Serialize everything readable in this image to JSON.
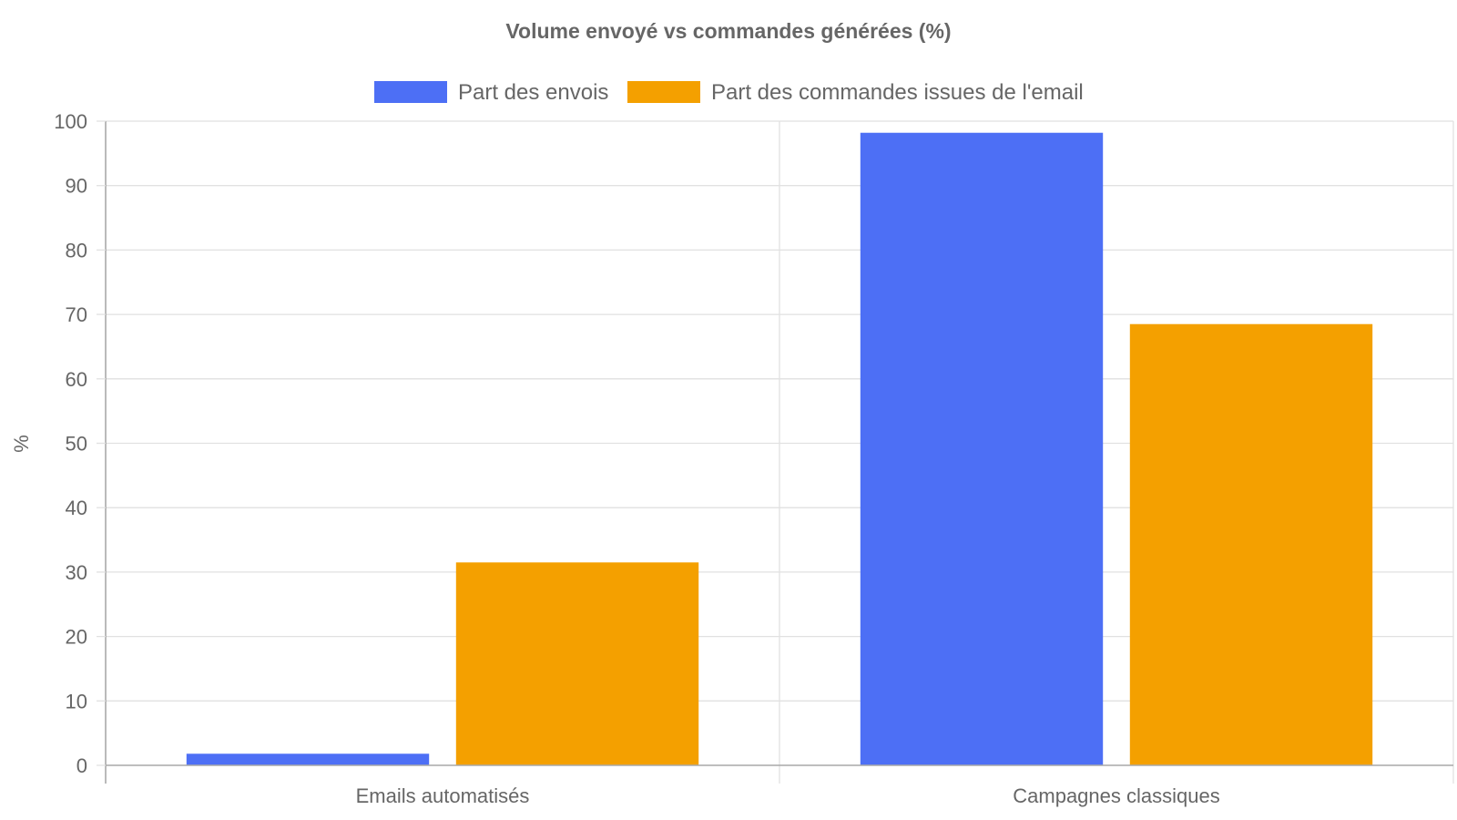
{
  "chart_data": {
    "type": "bar",
    "title": "Volume envoyé vs commandes générées (%)",
    "xlabel": "",
    "ylabel": "%",
    "categories": [
      "Emails automatisés",
      "Campagnes classiques"
    ],
    "series": [
      {
        "name": "Part des envois",
        "color": "#4d6ff5",
        "values": [
          1.8,
          98.2
        ]
      },
      {
        "name": "Part des commandes issues de l'email",
        "color": "#f4a000",
        "values": [
          31.5,
          68.5
        ]
      }
    ],
    "ylim": [
      0,
      100
    ],
    "yticks": [
      0,
      10,
      20,
      30,
      40,
      50,
      60,
      70,
      80,
      90,
      100
    ],
    "grid": true,
    "legend_position": "top-center"
  }
}
